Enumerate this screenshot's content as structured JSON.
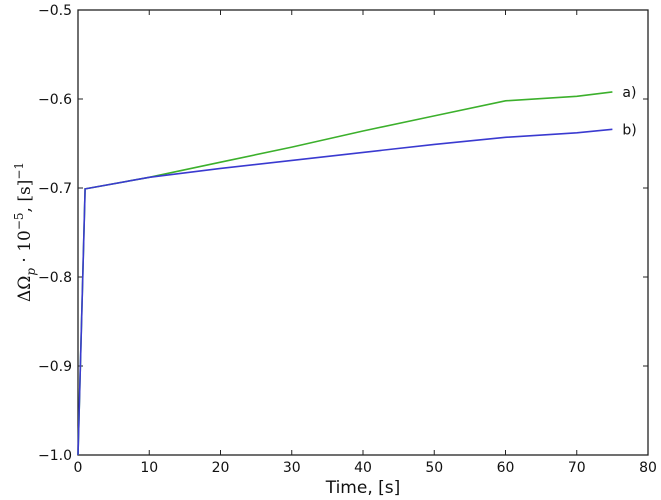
{
  "chart_data": {
    "type": "line",
    "title": "",
    "xlabel": "Time, [s]",
    "ylabel": "ΔΩ_p · 10^−5, [s]^−1",
    "ylabel_parts": {
      "main": "ΔΩ",
      "sub": "p",
      "mid": " · 10",
      "sup": "−5",
      "tail": ", [s]",
      "sup2": "−1"
    },
    "xlim": [
      0,
      80
    ],
    "ylim": [
      -1.0,
      -0.5
    ],
    "xticks": [
      0,
      10,
      20,
      30,
      40,
      50,
      60,
      70,
      80
    ],
    "xtick_labels": [
      "0",
      "10",
      "20",
      "30",
      "40",
      "50",
      "60",
      "70",
      "80"
    ],
    "yticks": [
      -1.0,
      -0.9,
      -0.8,
      -0.7,
      -0.6,
      -0.5
    ],
    "ytick_labels": [
      "−1.0",
      "−0.9",
      "−0.8",
      "−0.7",
      "−0.6",
      "−0.5"
    ],
    "grid": false,
    "legend": "inline labels at line ends",
    "series": [
      {
        "name": "a)",
        "color": "#3cb02c",
        "x": [
          0,
          1,
          10,
          20,
          30,
          40,
          50,
          60,
          70,
          75
        ],
        "y": [
          -1.0,
          -0.701,
          -0.688,
          -0.671,
          -0.654,
          -0.636,
          -0.619,
          -0.602,
          -0.597,
          -0.592
        ]
      },
      {
        "name": "b)",
        "color": "#3a3ad0",
        "x": [
          0,
          1,
          10,
          20,
          30,
          40,
          50,
          60,
          70,
          75
        ],
        "y": [
          -1.0,
          -0.701,
          -0.688,
          -0.678,
          -0.669,
          -0.66,
          -0.651,
          -0.643,
          -0.638,
          -0.634
        ]
      }
    ]
  }
}
